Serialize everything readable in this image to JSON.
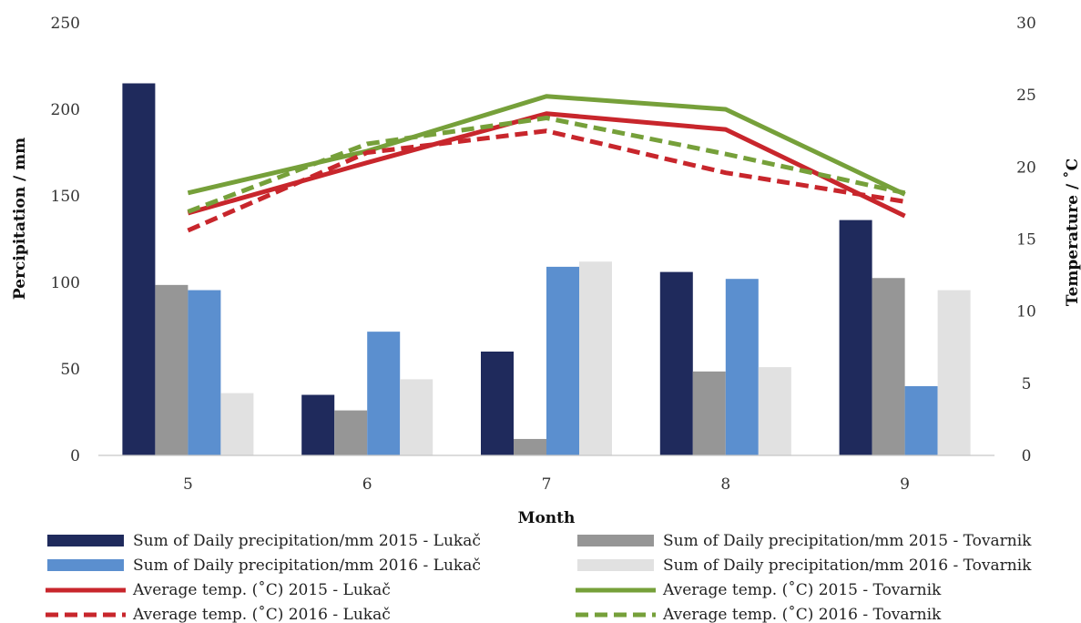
{
  "chart_data": {
    "type": "bar",
    "xlabel": "Month",
    "ylabel_left": "Percipitation / mm",
    "ylabel_right": "Temperature / ˚C",
    "categories": [
      "5",
      "6",
      "7",
      "8",
      "9"
    ],
    "ylim_left": [
      0,
      250
    ],
    "ylim_right": [
      0,
      30
    ],
    "yticks_left": [
      "0",
      "50",
      "100",
      "150",
      "200",
      "250"
    ],
    "yticks_right": [
      "0",
      "5",
      "10",
      "15",
      "20",
      "25",
      "30"
    ],
    "grid": false,
    "legend_position": "bottom",
    "bar_series": [
      {
        "name": "Sum of Daily precipitation/mm 2015 - Lukač",
        "color": "#1f2a5c",
        "values": [
          215,
          35,
          60,
          106,
          136
        ]
      },
      {
        "name": "Sum of Daily precipitation/mm 2015 - Tovarnik",
        "color": "#969696",
        "values": [
          98.5,
          26,
          9.5,
          48.5,
          102.5
        ]
      },
      {
        "name": "Sum of Daily precipitation/mm 2016 - Lukač",
        "color": "#5b8fcf",
        "values": [
          95.5,
          71.5,
          109,
          102,
          40
        ]
      },
      {
        "name": "Sum of Daily precipitation/mm 2016 - Tovarnik",
        "color": "#e1e1e1",
        "values": [
          36,
          44,
          112,
          51,
          95.5
        ]
      }
    ],
    "line_series": [
      {
        "name": "Average temp. (˚C) 2015 - Lukač",
        "color": "#c8262c",
        "dashed": false,
        "values": [
          16.8,
          20.3,
          23.7,
          22.6,
          16.6
        ]
      },
      {
        "name": "Average temp. (˚C) 2015 - Tovarnik",
        "color": "#76a03a",
        "dashed": false,
        "values": [
          18.2,
          21.1,
          24.9,
          24.0,
          18.1
        ]
      },
      {
        "name": "Average temp. (˚C) 2016 - Lukač",
        "color": "#c8262c",
        "dashed": true,
        "values": [
          15.6,
          21.0,
          22.5,
          19.6,
          17.6
        ]
      },
      {
        "name": "Average temp. (˚C) 2016 - Tovarnik",
        "color": "#76a03a",
        "dashed": true,
        "values": [
          16.9,
          21.6,
          23.4,
          20.9,
          18.2
        ]
      }
    ]
  }
}
